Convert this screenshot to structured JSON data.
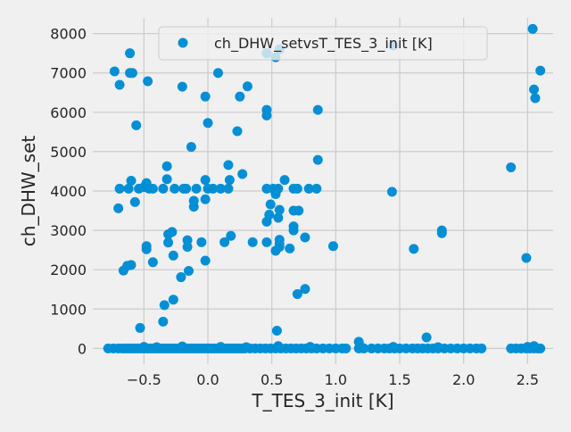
{
  "chart_data": {
    "type": "scatter",
    "title": "",
    "xlabel": "T_TES_3_init [K]",
    "ylabel": "ch_DHW_set",
    "xlim": [
      -0.9,
      2.7
    ],
    "ylim": [
      -400,
      8400
    ],
    "x_ticks": [
      -0.5,
      0.0,
      0.5,
      1.0,
      1.5,
      2.0,
      2.5
    ],
    "x_tick_labels": [
      "−0.5",
      "0.0",
      "0.5",
      "1.0",
      "1.5",
      "2.0",
      "2.5"
    ],
    "y_ticks": [
      0,
      1000,
      2000,
      3000,
      4000,
      5000,
      6000,
      7000,
      8000
    ],
    "y_tick_labels": [
      "0",
      "1000",
      "2000",
      "3000",
      "4000",
      "5000",
      "6000",
      "7000",
      "8000"
    ],
    "grid": true,
    "legend_position": "top-center",
    "series": [
      {
        "name": "ch_DHW_setvsT_TES_3_init [K]",
        "color": "#008fd5",
        "points": [
          [
            -0.73,
            7040
          ],
          [
            -0.69,
            6700
          ],
          [
            -0.61,
            7500
          ],
          [
            -0.61,
            7000
          ],
          [
            -0.59,
            7000
          ],
          [
            -0.47,
            6790
          ],
          [
            -0.2,
            6650
          ],
          [
            0.08,
            7000
          ],
          [
            0.31,
            6660
          ],
          [
            0.25,
            6400
          ],
          [
            -0.02,
            6400
          ],
          [
            0.46,
            7500
          ],
          [
            0.53,
            7400
          ],
          [
            0.56,
            7600
          ],
          [
            0.46,
            6060
          ],
          [
            0.46,
            5920
          ],
          [
            0.86,
            6060
          ],
          [
            1.45,
            7700
          ],
          [
            2.54,
            8120
          ],
          [
            2.6,
            7060
          ],
          [
            2.55,
            6580
          ],
          [
            2.56,
            6360
          ],
          [
            -0.56,
            5670
          ],
          [
            -0.13,
            5120
          ],
          [
            0.0,
            5730
          ],
          [
            0.23,
            5520
          ],
          [
            0.86,
            4790
          ],
          [
            -0.32,
            4630
          ],
          [
            0.16,
            4660
          ],
          [
            0.27,
            4430
          ],
          [
            2.37,
            4600
          ],
          [
            1.44,
            3980
          ],
          [
            -0.7,
            3560
          ],
          [
            -0.69,
            4060
          ],
          [
            -0.62,
            4060
          ],
          [
            -0.6,
            4260
          ],
          [
            -0.57,
            3720
          ],
          [
            -0.54,
            4060
          ],
          [
            -0.5,
            4100
          ],
          [
            -0.48,
            4200
          ],
          [
            -0.46,
            4060
          ],
          [
            -0.43,
            4060
          ],
          [
            -0.35,
            4060
          ],
          [
            -0.32,
            4300
          ],
          [
            -0.26,
            4060
          ],
          [
            -0.19,
            4060
          ],
          [
            -0.17,
            4060
          ],
          [
            -0.11,
            3600
          ],
          [
            -0.11,
            3750
          ],
          [
            -0.09,
            4060
          ],
          [
            -0.02,
            3790
          ],
          [
            -0.02,
            4280
          ],
          [
            0.0,
            4060
          ],
          [
            0.04,
            4060
          ],
          [
            0.1,
            4060
          ],
          [
            0.16,
            4060
          ],
          [
            0.17,
            4280
          ],
          [
            0.46,
            4060
          ],
          [
            0.51,
            4060
          ],
          [
            0.55,
            4060
          ],
          [
            0.6,
            4280
          ],
          [
            0.67,
            4060
          ],
          [
            0.7,
            4060
          ],
          [
            0.79,
            4060
          ],
          [
            0.85,
            4060
          ],
          [
            0.48,
            3400
          ],
          [
            0.49,
            3660
          ],
          [
            0.53,
            3920
          ],
          [
            0.56,
            3520
          ],
          [
            0.55,
            3320
          ],
          [
            0.46,
            3220
          ],
          [
            0.67,
            3500
          ],
          [
            0.71,
            3500
          ],
          [
            0.67,
            3100
          ],
          [
            0.67,
            3000
          ],
          [
            -0.31,
            2900
          ],
          [
            -0.28,
            2960
          ],
          [
            -0.31,
            2690
          ],
          [
            -0.16,
            2750
          ],
          [
            -0.16,
            2580
          ],
          [
            -0.05,
            2700
          ],
          [
            0.18,
            2860
          ],
          [
            0.13,
            2700
          ],
          [
            0.35,
            2700
          ],
          [
            0.46,
            2700
          ],
          [
            0.53,
            2480
          ],
          [
            0.56,
            2580
          ],
          [
            0.56,
            2650
          ],
          [
            0.56,
            2760
          ],
          [
            0.64,
            2540
          ],
          [
            0.76,
            2820
          ],
          [
            0.98,
            2600
          ],
          [
            1.61,
            2530
          ],
          [
            1.83,
            3000
          ],
          [
            1.83,
            2930
          ],
          [
            -0.48,
            2600
          ],
          [
            -0.48,
            2520
          ],
          [
            -0.66,
            1980
          ],
          [
            -0.63,
            2100
          ],
          [
            -0.6,
            2120
          ],
          [
            -0.43,
            2190
          ],
          [
            -0.27,
            2360
          ],
          [
            -0.21,
            1810
          ],
          [
            -0.15,
            1970
          ],
          [
            -0.02,
            2230
          ],
          [
            2.49,
            2300
          ],
          [
            -0.27,
            1240
          ],
          [
            -0.34,
            1100
          ],
          [
            0.7,
            1380
          ],
          [
            0.76,
            1510
          ],
          [
            -0.35,
            680
          ],
          [
            -0.53,
            520
          ],
          [
            0.54,
            450
          ],
          [
            1.71,
            280
          ],
          [
            1.18,
            170
          ],
          [
            -0.78,
            0
          ],
          [
            -0.74,
            0
          ],
          [
            -0.7,
            0
          ],
          [
            -0.67,
            0
          ],
          [
            -0.65,
            0
          ],
          [
            -0.63,
            0
          ],
          [
            -0.61,
            0
          ],
          [
            -0.59,
            0
          ],
          [
            -0.57,
            0
          ],
          [
            -0.55,
            0
          ],
          [
            -0.53,
            0
          ],
          [
            -0.51,
            0
          ],
          [
            -0.49,
            0
          ],
          [
            -0.47,
            0
          ],
          [
            -0.45,
            0
          ],
          [
            -0.43,
            0
          ],
          [
            -0.41,
            0
          ],
          [
            -0.39,
            0
          ],
          [
            -0.37,
            0
          ],
          [
            -0.35,
            0
          ],
          [
            -0.33,
            0
          ],
          [
            -0.31,
            0
          ],
          [
            -0.29,
            0
          ],
          [
            -0.27,
            0
          ],
          [
            -0.25,
            0
          ],
          [
            -0.23,
            0
          ],
          [
            -0.21,
            0
          ],
          [
            -0.19,
            0
          ],
          [
            -0.17,
            0
          ],
          [
            -0.15,
            0
          ],
          [
            -0.13,
            0
          ],
          [
            -0.11,
            0
          ],
          [
            -0.09,
            0
          ],
          [
            -0.07,
            0
          ],
          [
            -0.05,
            0
          ],
          [
            -0.03,
            0
          ],
          [
            -0.01,
            0
          ],
          [
            0.01,
            0
          ],
          [
            0.03,
            0
          ],
          [
            0.05,
            0
          ],
          [
            0.07,
            0
          ],
          [
            0.09,
            0
          ],
          [
            0.11,
            0
          ],
          [
            0.13,
            0
          ],
          [
            0.15,
            0
          ],
          [
            0.17,
            0
          ],
          [
            0.19,
            0
          ],
          [
            0.21,
            0
          ],
          [
            0.23,
            0
          ],
          [
            0.25,
            0
          ],
          [
            0.27,
            0
          ],
          [
            0.29,
            0
          ],
          [
            0.33,
            0
          ],
          [
            0.37,
            0
          ],
          [
            0.41,
            0
          ],
          [
            0.45,
            0
          ],
          [
            0.49,
            0
          ],
          [
            0.53,
            0
          ],
          [
            0.57,
            0
          ],
          [
            0.61,
            0
          ],
          [
            0.65,
            0
          ],
          [
            0.69,
            0
          ],
          [
            0.73,
            0
          ],
          [
            0.77,
            0
          ],
          [
            0.81,
            0
          ],
          [
            0.85,
            0
          ],
          [
            0.9,
            0
          ],
          [
            0.95,
            0
          ],
          [
            1.0,
            0
          ],
          [
            1.05,
            0
          ],
          [
            1.08,
            0
          ],
          [
            1.18,
            0
          ],
          [
            1.22,
            0
          ],
          [
            1.28,
            0
          ],
          [
            1.33,
            0
          ],
          [
            1.38,
            0
          ],
          [
            1.42,
            0
          ],
          [
            1.46,
            0
          ],
          [
            1.5,
            0
          ],
          [
            1.55,
            0
          ],
          [
            1.6,
            0
          ],
          [
            1.64,
            0
          ],
          [
            1.68,
            0
          ],
          [
            1.72,
            0
          ],
          [
            1.76,
            0
          ],
          [
            1.8,
            0
          ],
          [
            1.85,
            0
          ],
          [
            1.9,
            0
          ],
          [
            1.95,
            0
          ],
          [
            2.0,
            0
          ],
          [
            2.05,
            0
          ],
          [
            2.1,
            0
          ],
          [
            2.14,
            0
          ],
          [
            2.37,
            0
          ],
          [
            2.41,
            0
          ],
          [
            2.45,
            0
          ],
          [
            2.49,
            0
          ],
          [
            2.52,
            0
          ],
          [
            2.55,
            0
          ],
          [
            2.58,
            0
          ],
          [
            2.6,
            0
          ],
          [
            -0.5,
            40
          ],
          [
            -0.4,
            30
          ],
          [
            -0.2,
            50
          ],
          [
            0.1,
            40
          ],
          [
            0.3,
            30
          ],
          [
            0.55,
            60
          ],
          [
            0.8,
            40
          ],
          [
            1.2,
            30
          ],
          [
            1.45,
            40
          ],
          [
            1.8,
            30
          ],
          [
            2.5,
            40
          ],
          [
            2.55,
            60
          ]
        ]
      }
    ]
  }
}
